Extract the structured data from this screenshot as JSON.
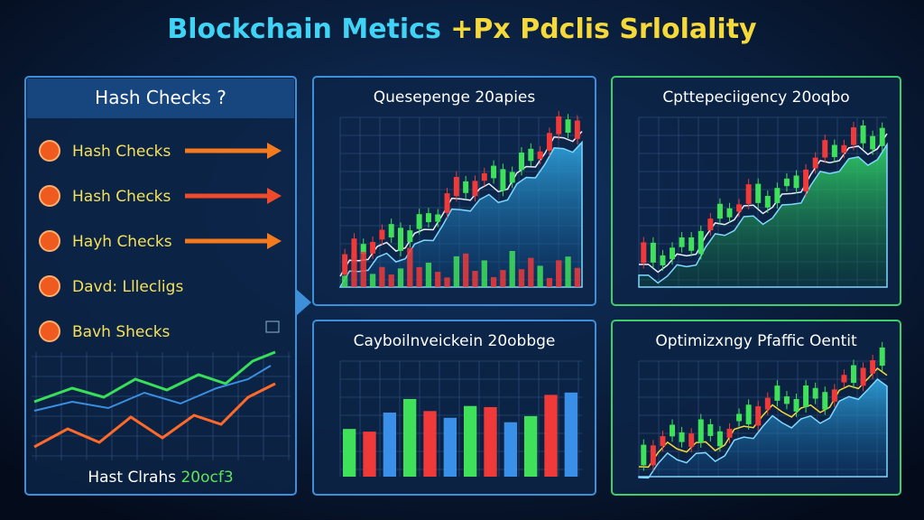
{
  "header": {
    "title_main": "Blockchain Metics",
    "title_accent": "+Px Pdclis Srlolality"
  },
  "sidebar": {
    "title": "Hash Checks ?",
    "items": [
      "Hash Checks",
      "Hash Checks",
      "Hayh Checks",
      "Davd: Lllecligs",
      "Bavh Shecks"
    ],
    "footer_label": "Hast Clrahs",
    "footer_value": "20ocf3"
  },
  "panels": [
    {
      "title": "Quesepenge 20apies"
    },
    {
      "title": "Cpttepeciigency 20oqbo"
    },
    {
      "title": "Cayboilnveickein 20obbge"
    },
    {
      "title": "Optimizxngy Pfaffic Oentit"
    }
  ]
}
